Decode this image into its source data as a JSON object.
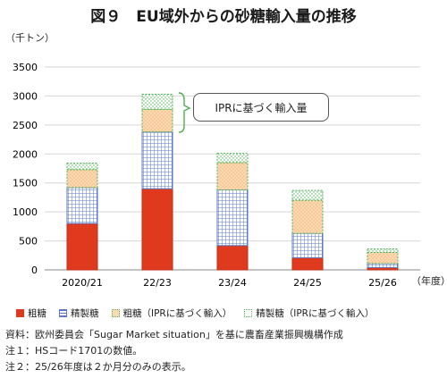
{
  "title": "図９　EU域外からの砂糖輸入量の推移",
  "unit_label": "（千トン）",
  "x_unit_label": "（年度）",
  "callout": "IPRに基づく輸入量",
  "notes": [
    "資料：欧州委員会「Sugar Market situation」を基に農畜産業振興機構作成",
    "注１：HSコード1701の数値。",
    "注２：25/26年度は２か月分のみの表示。"
  ],
  "colors": {
    "raw": "#e03a1e",
    "refined": "#5b79c7",
    "raw_ipr": "#f2a55a",
    "refined_ipr": "#4caf50"
  },
  "chart_data": {
    "type": "bar",
    "stacked": true,
    "categories": [
      "2020/21",
      "22/23",
      "23/24",
      "24/25",
      "25/26"
    ],
    "series": [
      {
        "name": "粗糖",
        "values": [
          800,
          1400,
          420,
          210,
          40
        ]
      },
      {
        "name": "精製糖",
        "values": [
          620,
          980,
          960,
          420,
          70
        ]
      },
      {
        "name": "粗糖（IPRに基づく輸入）",
        "values": [
          310,
          390,
          470,
          570,
          190
        ]
      },
      {
        "name": "精製糖（IPRに基づく輸入）",
        "values": [
          110,
          260,
          160,
          170,
          60
        ]
      }
    ],
    "ylim": [
      0,
      3500
    ],
    "yticks": [
      0,
      500,
      1000,
      1500,
      2000,
      2500,
      3000,
      3500
    ],
    "grid": true,
    "legend_position": "bottom"
  }
}
